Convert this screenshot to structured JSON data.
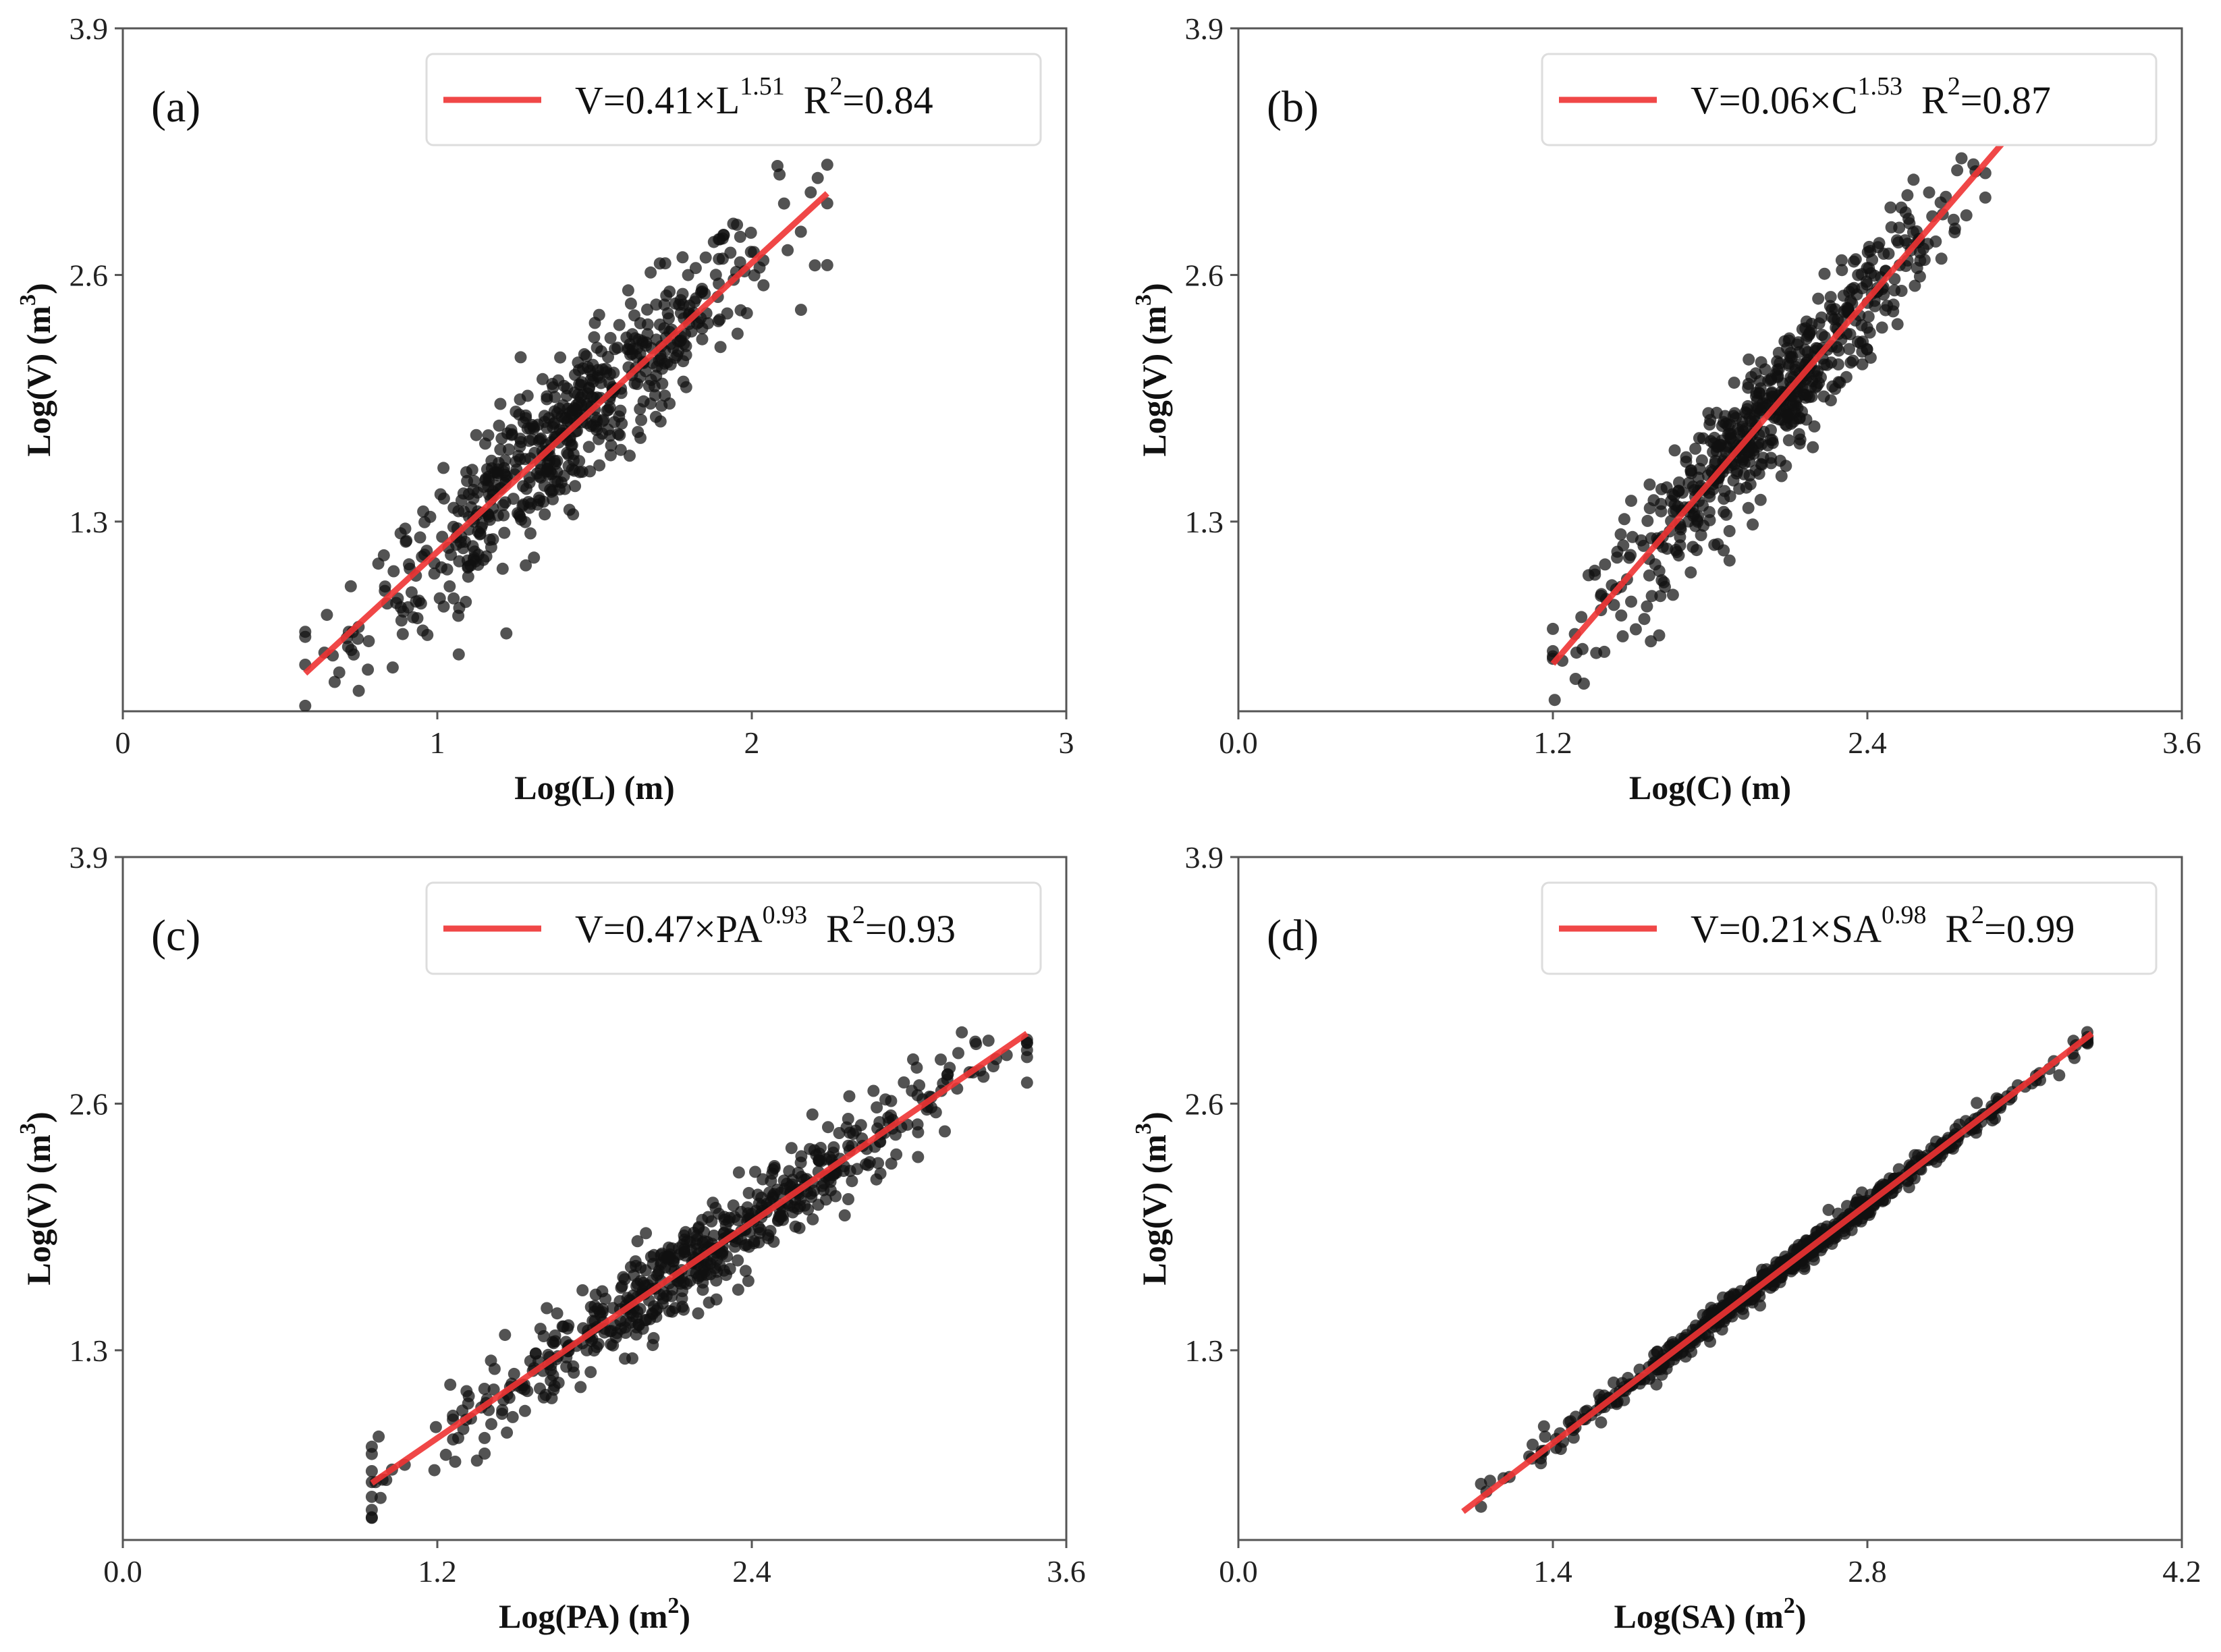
{
  "colors": {
    "fit_line": "#ee3333",
    "points": "#111111",
    "axes": "#555555",
    "legend_border": "#dddddd"
  },
  "chart_data": [
    {
      "type": "scatter",
      "panel_label": "(a)",
      "xlabel": "Log(L) (m)",
      "ylabel": "Log(V) (m",
      "ylabel_sup": "3",
      "ylabel_close": ")",
      "xlim": [
        0,
        3
      ],
      "ylim": [
        0.3,
        3.9
      ],
      "xticks": [
        "0",
        "1",
        "2",
        "3"
      ],
      "yticks": [
        "1.3",
        "2.6",
        "3.9"
      ],
      "fit": {
        "x": [
          0.58,
          2.24
        ],
        "y": [
          0.5,
          3.03
        ]
      },
      "legend": {
        "coef": "V=0.41×L",
        "exp": "1.51",
        "r_base": "R",
        "r_sup": "2",
        "r_val": "=0.84",
        "position": "top-right"
      },
      "cloud": {
        "x_range": [
          0.58,
          2.24
        ],
        "spread": 0.19,
        "n": 600
      }
    },
    {
      "type": "scatter",
      "panel_label": "(b)",
      "xlabel": "Log(C) (m)",
      "ylabel": "Log(V) (m",
      "ylabel_sup": "3",
      "ylabel_close": ")",
      "xlim": [
        0,
        3.6
      ],
      "ylim": [
        0.3,
        3.9
      ],
      "xticks": [
        "0.0",
        "1.2",
        "2.4",
        "3.6"
      ],
      "yticks": [
        "1.3",
        "2.6",
        "3.9"
      ],
      "fit": {
        "x": [
          1.2,
          2.95
        ],
        "y": [
          0.55,
          3.35
        ]
      },
      "legend": {
        "coef": "V=0.06×C",
        "exp": "1.53",
        "r_base": "R",
        "r_sup": "2",
        "r_val": "=0.87",
        "position": "top-right"
      },
      "cloud": {
        "x_range": [
          1.2,
          2.85
        ],
        "spread": 0.17,
        "n": 600
      }
    },
    {
      "type": "scatter",
      "panel_label": "(c)",
      "xlabel": "Log(PA) (m",
      "xlabel_sup": "2",
      "xlabel_close": ")",
      "ylabel": "Log(V) (m",
      "ylabel_sup": "3",
      "ylabel_close": ")",
      "xlim": [
        0,
        3.6
      ],
      "ylim": [
        0.3,
        3.9
      ],
      "xticks": [
        "0.0",
        "1.2",
        "2.4",
        "3.6"
      ],
      "yticks": [
        "1.3",
        "2.6",
        "3.9"
      ],
      "fit": {
        "x": [
          0.95,
          3.45
        ],
        "y": [
          0.6,
          2.97
        ]
      },
      "legend": {
        "coef": "V=0.47×PA",
        "exp": "0.93",
        "r_base": "R",
        "r_sup": "2",
        "r_val": "=0.93",
        "position": "top-right"
      },
      "cloud": {
        "x_range": [
          0.95,
          3.45
        ],
        "spread": 0.12,
        "n": 600
      }
    },
    {
      "type": "scatter",
      "panel_label": "(d)",
      "xlabel": "Log(SA) (m",
      "xlabel_sup": "2",
      "xlabel_close": ")",
      "ylabel": "Log(V) (m",
      "ylabel_sup": "3",
      "ylabel_close": ")",
      "xlim": [
        0,
        4.2
      ],
      "ylim": [
        0.3,
        3.9
      ],
      "xticks": [
        "0.0",
        "1.4",
        "2.8",
        "4.2"
      ],
      "yticks": [
        "1.3",
        "2.6",
        "3.9"
      ],
      "fit": {
        "x": [
          1.0,
          3.8
        ],
        "y": [
          0.45,
          2.97
        ]
      },
      "legend": {
        "coef": "V=0.21×SA",
        "exp": "0.98",
        "r_base": "R",
        "r_sup": "2",
        "r_val": "=0.99",
        "position": "top-right"
      },
      "cloud": {
        "x_range": [
          1.08,
          3.78
        ],
        "spread": 0.035,
        "n": 600
      }
    }
  ]
}
